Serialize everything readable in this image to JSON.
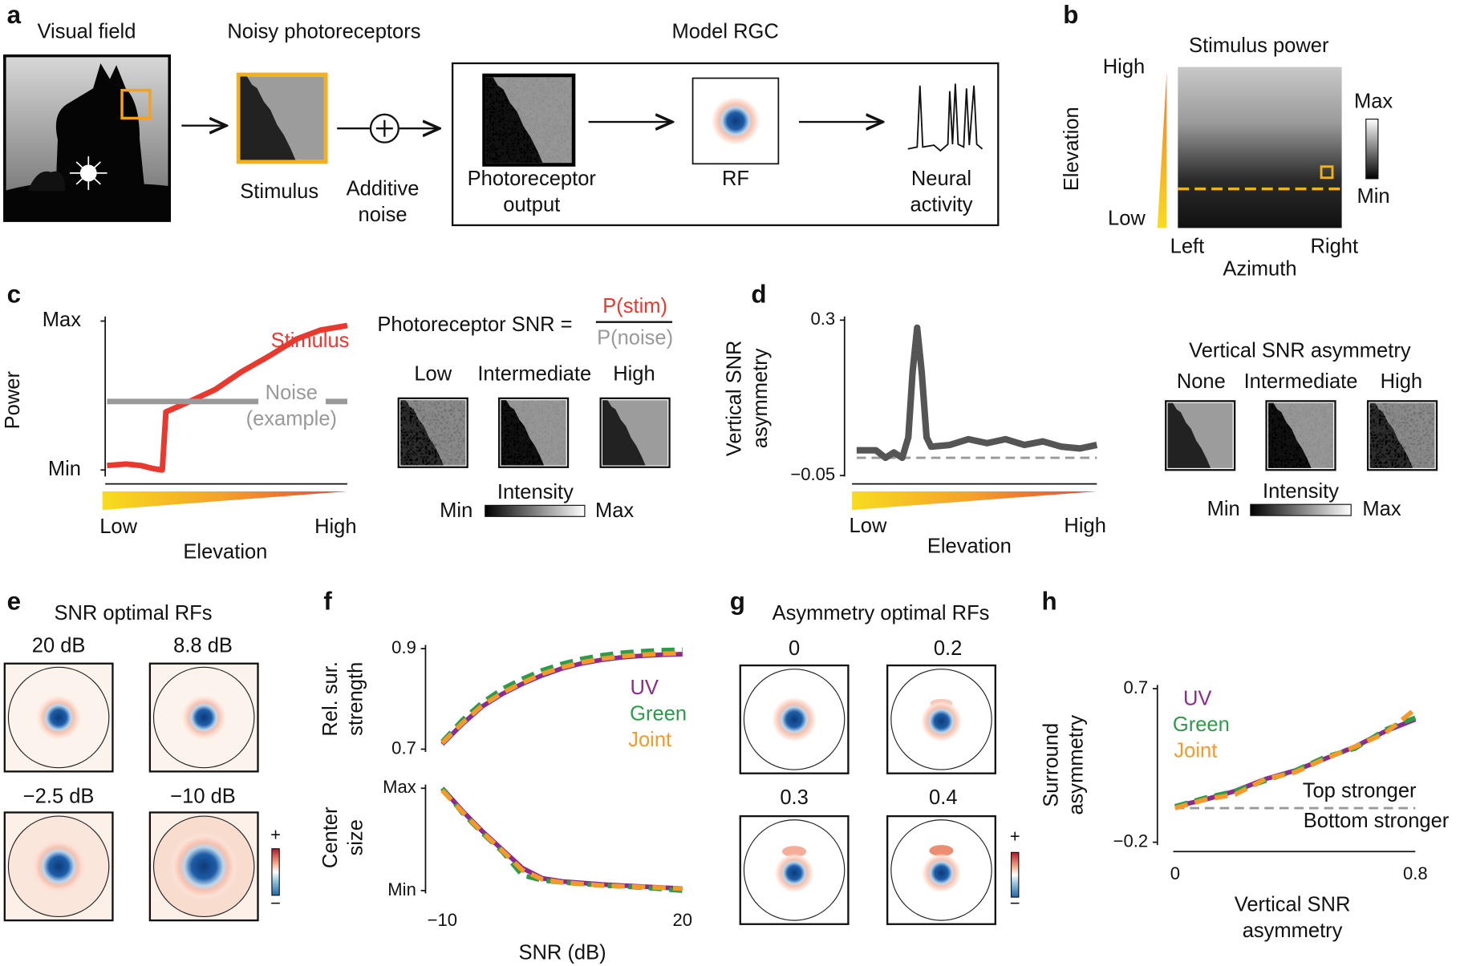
{
  "panels": {
    "a": {
      "label": "a",
      "visual_field": "Visual field",
      "noisy_photoreceptors": "Noisy photoreceptors",
      "model_rgc": "Model RGC",
      "stimulus": "Stimulus",
      "additive_noise": [
        "Additive",
        "noise"
      ],
      "photoreceptor_output": [
        "Photoreceptor",
        "output"
      ],
      "rf": "RF",
      "neural_activity": [
        "Neural",
        "activity"
      ]
    },
    "b": {
      "label": "b",
      "title": "Stimulus power",
      "elevation_high": "High",
      "elevation_low": "Low",
      "ylabel": "Elevation",
      "left": "Left",
      "right": "Right",
      "xlabel": "Azimuth",
      "colorbar_max": "Max",
      "colorbar_min": "Min"
    },
    "c": {
      "label": "c",
      "type": "line",
      "ylabel": "Power",
      "xlabel": "Elevation",
      "xlim": [
        0,
        1
      ],
      "xticks": [
        {
          "value": 0,
          "label": "Low"
        },
        {
          "value": 1,
          "label": "High"
        }
      ],
      "ylim": [
        0,
        1
      ],
      "yticks": [
        {
          "value": 0,
          "label": "Min"
        },
        {
          "value": 1,
          "label": "Max"
        }
      ],
      "series": [
        {
          "name": "Stimulus",
          "color": "#e8392f",
          "x": [
            0,
            0.08,
            0.14,
            0.19,
            0.23,
            0.245,
            0.33,
            0.45,
            0.56,
            0.68,
            0.79,
            0.89,
            1.0
          ],
          "values": [
            0.03,
            0.04,
            0.03,
            0.01,
            0.0,
            0.39,
            0.45,
            0.54,
            0.66,
            0.77,
            0.88,
            0.94,
            0.97
          ]
        },
        {
          "name": "Noise",
          "color": "#999999",
          "x": [
            0,
            0.63,
            0.68,
            0.91,
            1.0
          ],
          "values": [
            0.46,
            0.46,
            null,
            0.46,
            0.46
          ]
        }
      ],
      "noise_note": "(example)",
      "snr_formula": {
        "lhs": "Photoreceptor SNR =",
        "numerator": "P(stim)",
        "denominator": "P(noise)"
      },
      "snr_levels": [
        "Low",
        "Intermediate",
        "High"
      ],
      "colorbar": {
        "label": "Intensity",
        "min": "Min",
        "max": "Max"
      }
    },
    "d": {
      "label": "d",
      "type": "line",
      "ylabel": [
        "Vertical SNR",
        "asymmetry"
      ],
      "xlabel": "Elevation",
      "xlim": [
        0,
        1
      ],
      "xticks": [
        {
          "value": 0,
          "label": "Low"
        },
        {
          "value": 1,
          "label": "High"
        }
      ],
      "ylim": [
        -0.05,
        0.3
      ],
      "yticks": [
        {
          "value": -0.05,
          "label": "−0.05"
        },
        0.3
      ],
      "reference": -0.01,
      "series": [
        {
          "color": "#555555",
          "x": [
            0,
            0.08,
            0.12,
            0.155,
            0.19,
            0.215,
            0.233,
            0.252,
            0.271,
            0.291,
            0.31,
            0.388,
            0.465,
            0.543,
            0.62,
            0.698,
            0.775,
            0.853,
            0.93,
            1.0
          ],
          "values": [
            0.007,
            0.007,
            -0.01,
            0.002,
            -0.01,
            0.036,
            0.183,
            0.283,
            0.183,
            0.036,
            0.015,
            0.019,
            0.032,
            0.023,
            0.032,
            0.019,
            0.027,
            0.015,
            0.011,
            0.019
          ]
        }
      ],
      "asym_title": "Vertical SNR asymmetry",
      "asym_levels": [
        "None",
        "Intermediate",
        "High"
      ],
      "colorbar": {
        "label": "Intensity",
        "min": "Min",
        "max": "Max"
      }
    },
    "e": {
      "label": "e",
      "title": "SNR optimal RFs",
      "rfs": [
        "20 dB",
        "8.8 dB",
        "−2.5 dB",
        "−10 dB"
      ],
      "colorbar": {
        "plus": "+",
        "minus": "−"
      }
    },
    "f": {
      "label": "f",
      "type": "line",
      "xlim": [
        -10,
        20
      ],
      "xticks": [
        {
          "value": -10,
          "label": "−10"
        },
        20
      ],
      "xlabel": "SNR (dB)",
      "top": {
        "ylabel": [
          "Rel. sur.",
          "strength"
        ],
        "ylim": [
          0.7,
          0.9
        ],
        "yticks": [
          0.7,
          0.9
        ],
        "series": [
          {
            "name": "UV",
            "color": "#8b2c8c",
            "style": "solid",
            "x": [
              -10,
              -7.5,
              -5,
              -2.5,
              0,
              2.5,
              5,
              7.5,
              10,
              12.5,
              15,
              17.5,
              20
            ],
            "values": [
              0.71,
              0.75,
              0.785,
              0.81,
              0.83,
              0.847,
              0.861,
              0.871,
              0.878,
              0.883,
              0.886,
              0.888,
              0.889
            ]
          },
          {
            "name": "Green",
            "color": "#2f9a4a",
            "style": "dashed",
            "x": [
              -10,
              -7.5,
              -5,
              -2.5,
              0,
              2.5,
              5,
              7.5,
              10,
              12.5,
              15,
              17.5,
              20
            ],
            "values": [
              0.715,
              0.758,
              0.793,
              0.82,
              0.84,
              0.857,
              0.87,
              0.88,
              0.887,
              0.892,
              0.895,
              0.897,
              0.898
            ]
          },
          {
            "name": "Joint",
            "color": "#f39a2a",
            "style": "dashed",
            "x": [
              -10,
              -7.5,
              -5,
              -2.5,
              0,
              2.5,
              5,
              7.5,
              10,
              12.5,
              15,
              17.5,
              20
            ],
            "values": [
              0.712,
              0.752,
              0.787,
              0.812,
              0.832,
              0.85,
              0.863,
              0.873,
              0.88,
              0.885,
              0.888,
              0.89,
              0.891
            ]
          }
        ]
      },
      "bottom": {
        "ylabel": [
          "Center",
          "size"
        ],
        "ylim": [
          0,
          1
        ],
        "yticks": [
          {
            "value": 0,
            "label": "Min"
          },
          {
            "value": 1,
            "label": "Max"
          }
        ],
        "series": [
          {
            "color": "#8b2c8c",
            "style": "solid",
            "x": [
              -10,
              -7.5,
              -5,
              -2.5,
              0,
              2.5,
              5,
              10,
              15,
              20
            ],
            "values": [
              1,
              0.78,
              0.58,
              0.4,
              0.22,
              0.12,
              0.09,
              0.06,
              0.04,
              0.02
            ]
          },
          {
            "color": "#2f9a4a",
            "style": "dashed",
            "x": [
              -10,
              -7.5,
              -5,
              -2.5,
              0,
              2.5,
              5,
              10,
              15,
              20
            ],
            "values": [
              1,
              0.76,
              0.56,
              0.38,
              0.15,
              0.1,
              0.08,
              0.05,
              0.03,
              0.0
            ]
          },
          {
            "color": "#f39a2a",
            "style": "dashed",
            "x": [
              -10,
              -7.5,
              -5,
              -2.5,
              0,
              2.5,
              5,
              10,
              15,
              20
            ],
            "values": [
              0.98,
              0.77,
              0.57,
              0.39,
              0.2,
              0.11,
              0.08,
              0.05,
              0.035,
              0.02
            ]
          }
        ]
      }
    },
    "g": {
      "label": "g",
      "title": "Asymmetry optimal RFs",
      "rfs": [
        0,
        0.2,
        0.3,
        0.4
      ],
      "colorbar": {
        "plus": "+",
        "minus": "−"
      }
    },
    "h": {
      "label": "h",
      "type": "line",
      "ylabel": [
        "Surround",
        "asymmetry"
      ],
      "xlabel": [
        "Vertical SNR",
        "asymmetry"
      ],
      "xlim": [
        0,
        0.8
      ],
      "xticks": [
        0,
        0.8
      ],
      "ylim": [
        -0.2,
        0.7
      ],
      "yticks": [
        {
          "value": -0.2,
          "label": "−0.2"
        },
        0.7
      ],
      "reference": 0,
      "series": [
        {
          "name": "UV",
          "color": "#8b2c8c",
          "style": "solid",
          "x": [
            0,
            0.1,
            0.2,
            0.3,
            0.4,
            0.5,
            0.6,
            0.7,
            0.8
          ],
          "values": [
            0.01,
            0.05,
            0.1,
            0.17,
            0.22,
            0.29,
            0.36,
            0.45,
            0.52
          ]
        },
        {
          "name": "Green",
          "color": "#2f9a4a",
          "style": "dashed",
          "x": [
            0,
            0.1,
            0.2,
            0.3,
            0.4,
            0.5,
            0.6,
            0.7,
            0.8
          ],
          "values": [
            0.01,
            0.06,
            0.1,
            0.16,
            0.22,
            0.3,
            0.35,
            0.46,
            0.53
          ]
        },
        {
          "name": "Joint",
          "color": "#f39a2a",
          "style": "dashed",
          "x": [
            0,
            0.1,
            0.2,
            0.3,
            0.4,
            0.5,
            0.6,
            0.7,
            0.8
          ],
          "values": [
            0.0,
            0.05,
            0.08,
            0.17,
            0.21,
            0.29,
            0.36,
            0.44,
            0.58
          ]
        }
      ],
      "annotations": [
        "Top stronger",
        "Bottom stronger"
      ]
    }
  }
}
